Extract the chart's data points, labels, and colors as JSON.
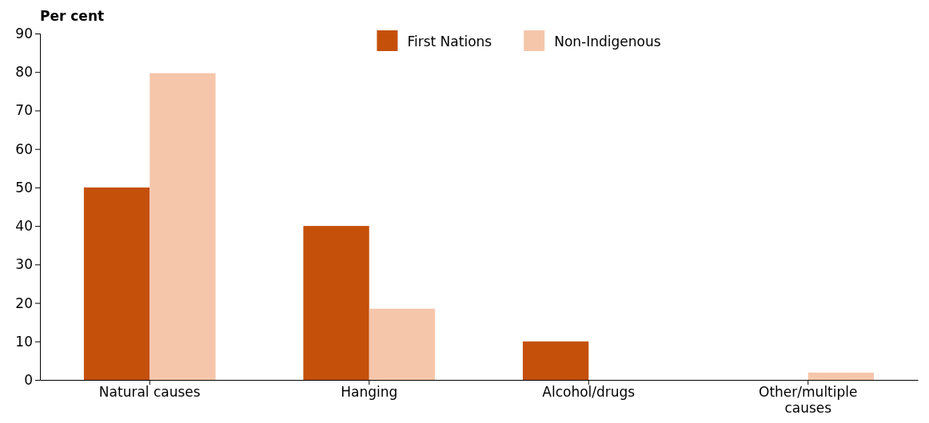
{
  "chart_data": {
    "type": "bar",
    "ylabel": "Per cent",
    "categories": [
      "Natural causes",
      "Hanging",
      "Alcohol/drugs",
      "Other/multiple causes"
    ],
    "series": [
      {
        "name": "First Nations",
        "color": "#c4500a",
        "values": [
          50,
          40,
          10,
          0
        ]
      },
      {
        "name": "Non-Indigenous",
        "color": "#f6c6ab",
        "values": [
          79.7,
          18.5,
          0,
          1.9
        ]
      }
    ],
    "ylim": [
      0,
      90
    ],
    "yticks": [
      0,
      10,
      20,
      30,
      40,
      50,
      60,
      70,
      80,
      90
    ],
    "grid": false,
    "legend": "top"
  }
}
